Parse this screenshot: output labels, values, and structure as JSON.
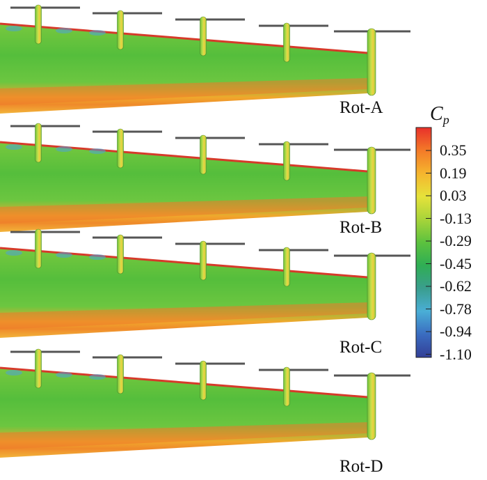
{
  "panels": [
    {
      "label": "Rot-A"
    },
    {
      "label": "Rot-B"
    },
    {
      "label": "Rot-C"
    },
    {
      "label": "Rot-D"
    }
  ],
  "colorbar": {
    "title_main": "C",
    "title_sub": "p",
    "ticks": [
      "0.35",
      "0.19",
      "0.03",
      "-0.13",
      "-0.29",
      "-0.45",
      "-0.62",
      "-0.78",
      "-0.94",
      "-1.10"
    ],
    "colors": [
      "#e8302a",
      "#f47a28",
      "#f5b52e",
      "#e6e23a",
      "#a8d43a",
      "#5cc23e",
      "#2fae54",
      "#3a9e8e",
      "#4aaed6",
      "#3a6cc0",
      "#333f96"
    ]
  },
  "surface_colors": {
    "wing_fill": "#55be3c",
    "wing_light": "#8fd24a",
    "trailing_band": "#f0a82c",
    "trailing_band_hot": "#ef7a2a",
    "leading_edge": "#d63a2a",
    "suction_spot": "#4da3d9",
    "nacelle": "#8dd046",
    "nacelle_tip": "#f0b030",
    "blade": "#555555"
  }
}
